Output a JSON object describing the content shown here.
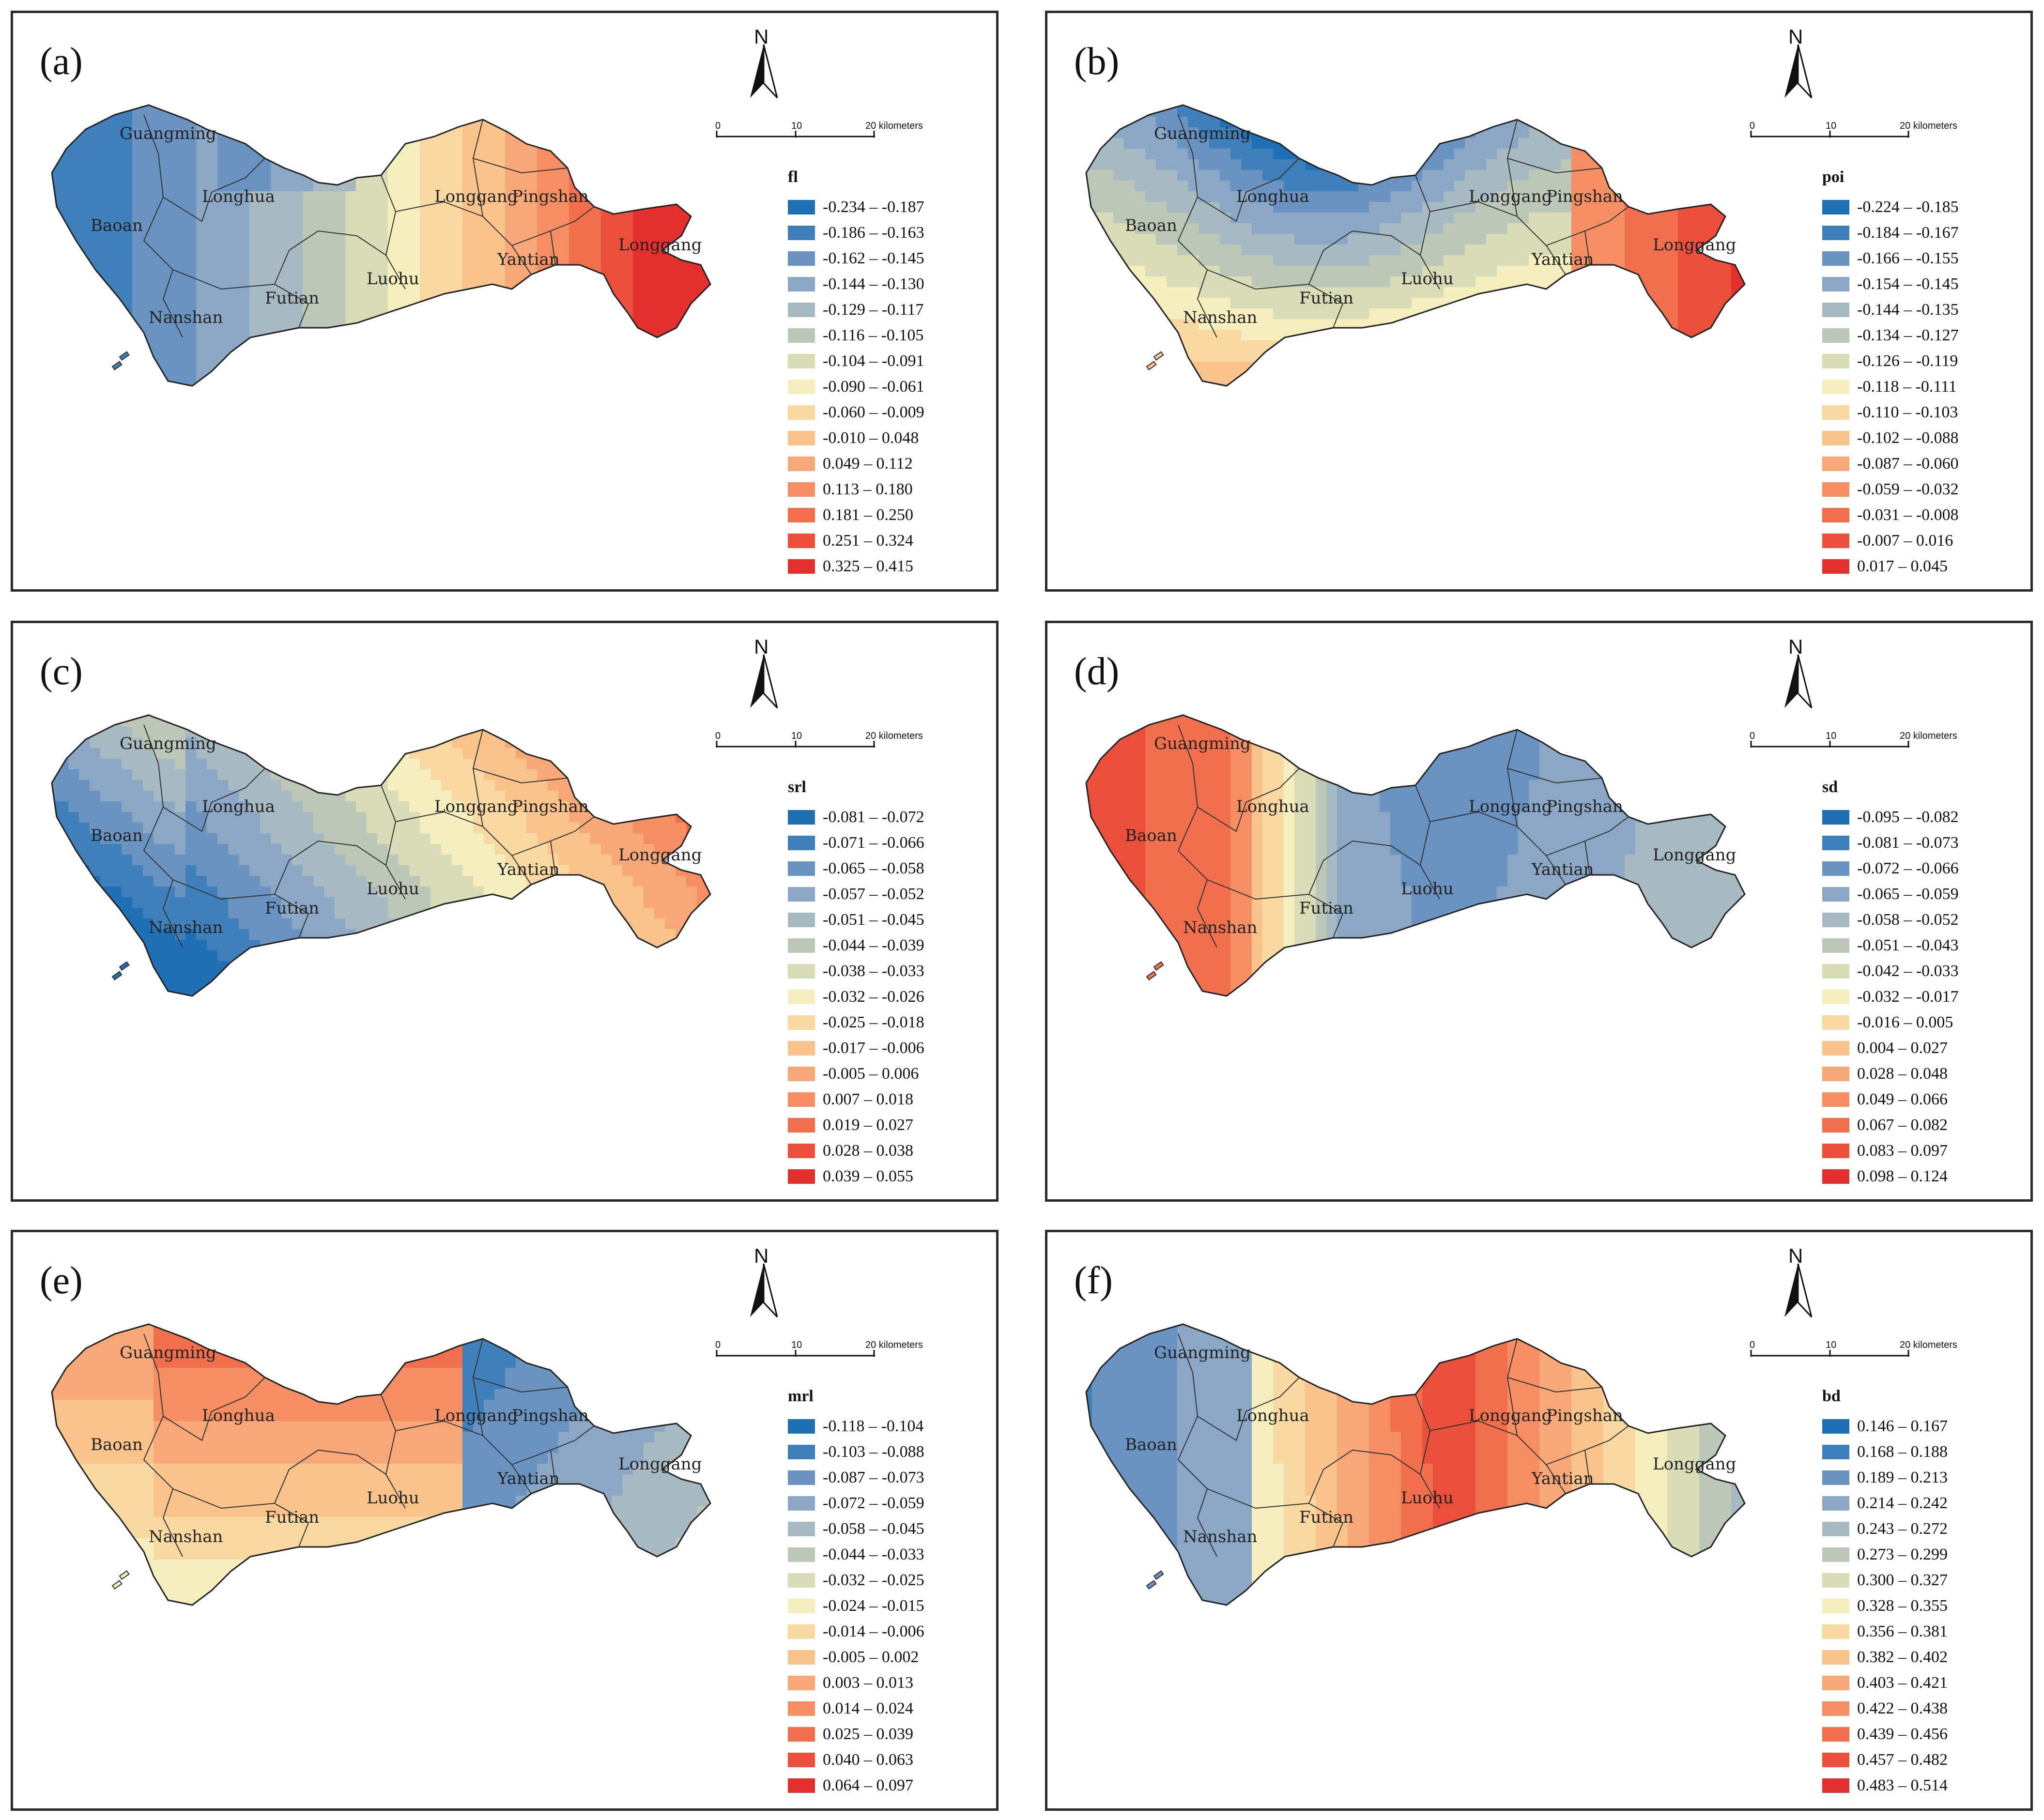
{
  "figure": {
    "scale": {
      "ticks": [
        "0",
        "10",
        "20 kilometers"
      ]
    },
    "north_label": "N",
    "panels": [
      {
        "id": "a",
        "label": "(a)",
        "variable": "fl",
        "legend": [
          "-0.234 – -0.187",
          "-0.186 – -0.163",
          "-0.162 – -0.145",
          "-0.144 – -0.130",
          "-0.129 – -0.117",
          "-0.116 – -0.105",
          "-0.104 – -0.091",
          "-0.090 – -0.061",
          "-0.060 – -0.009",
          "-0.010 – 0.048",
          "0.049 – 0.112",
          "0.113 – 0.180",
          "0.181 – 0.250",
          "0.251 – 0.324",
          "0.325 – 0.415"
        ],
        "districts": [
          "Guangming",
          "Longhua",
          "Baoan",
          "Nanshan",
          "Futian",
          "Luohu",
          "Longgang",
          "Pingshan",
          "Yantian",
          "Longgang"
        ],
        "pattern": "west-blue-east-red"
      },
      {
        "id": "b",
        "label": "(b)",
        "variable": "poi",
        "legend": [
          "-0.224 – -0.185",
          "-0.184 – -0.167",
          "-0.166 – -0.155",
          "-0.154 – -0.145",
          "-0.144 – -0.135",
          "-0.134 – -0.127",
          "-0.126 – -0.119",
          "-0.118 – -0.111",
          "-0.110 – -0.103",
          "-0.102 – -0.088",
          "-0.087 – -0.060",
          "-0.059 – -0.032",
          "-0.031 – -0.008",
          "-0.007 – 0.016",
          "0.017 – 0.045"
        ],
        "districts": [
          "Guangming",
          "Longhua",
          "Baoan",
          "Nanshan",
          "Futian",
          "Luohu",
          "Longgang",
          "Pingshan",
          "Yantian",
          "Longgang"
        ],
        "pattern": "north-blue-east-red"
      },
      {
        "id": "c",
        "label": "(c)",
        "variable": "srl",
        "legend": [
          "-0.081 – -0.072",
          "-0.071 – -0.066",
          "-0.065 – -0.058",
          "-0.057 – -0.052",
          "-0.051 – -0.045",
          "-0.044 – -0.039",
          "-0.038 – -0.033",
          "-0.032 – -0.026",
          "-0.025 – -0.018",
          "-0.017 – -0.006",
          "-0.005 – 0.006",
          "0.007 – 0.018",
          "0.019 – 0.027",
          "0.028 – 0.038",
          "0.039 – 0.055"
        ],
        "districts": [
          "Guangming",
          "Longhua",
          "Baoan",
          "Nanshan",
          "Futian",
          "Luohu",
          "Longgang",
          "Pingshan",
          "Yantian",
          "Longgang"
        ],
        "pattern": "southwest-blue-northeast-red"
      },
      {
        "id": "d",
        "label": "(d)",
        "variable": "sd",
        "legend": [
          "-0.095 – -0.082",
          "-0.081 – -0.073",
          "-0.072 – -0.066",
          "-0.065 – -0.059",
          "-0.058 – -0.052",
          "-0.051 – -0.043",
          "-0.042 – -0.033",
          "-0.032 – -0.017",
          "-0.016 – 0.005",
          "0.004 – 0.027",
          "0.028 – 0.048",
          "0.049 – 0.066",
          "0.067 – 0.082",
          "0.083 – 0.097",
          "0.098 – 0.124"
        ],
        "districts": [
          "Guangming",
          "Longhua",
          "Baoan",
          "Nanshan",
          "Futian",
          "Luohu",
          "Longgang",
          "Pingshan",
          "Yantian",
          "Longgang"
        ],
        "pattern": "west-red-east-blue"
      },
      {
        "id": "e",
        "label": "(e)",
        "variable": "mrl",
        "legend": [
          "-0.118 – -0.104",
          "-0.103 – -0.088",
          "-0.087 – -0.073",
          "-0.072 – -0.059",
          "-0.058 – -0.045",
          "-0.044 – -0.033",
          "-0.032 – -0.025",
          "-0.024 – -0.015",
          "-0.014 – -0.006",
          "-0.005 – 0.002",
          "0.003 – 0.013",
          "0.014 – 0.024",
          "0.025 – 0.039",
          "0.040 – 0.063",
          "0.064 – 0.097"
        ],
        "districts": [
          "Guangming",
          "Longhua",
          "Baoan",
          "Nanshan",
          "Futian",
          "Luohu",
          "Longgang",
          "Pingshan",
          "Yantian",
          "Longgang"
        ],
        "pattern": "north-red-east-blue"
      },
      {
        "id": "f",
        "label": "(f)",
        "variable": "bd",
        "legend": [
          "0.146 – 0.167",
          "0.168 – 0.188",
          "0.189 – 0.213",
          "0.214 – 0.242",
          "0.243 – 0.272",
          "0.273 – 0.299",
          "0.300 – 0.327",
          "0.328 – 0.355",
          "0.356 – 0.381",
          "0.382 – 0.402",
          "0.403 – 0.421",
          "0.422 – 0.438",
          "0.439 – 0.456",
          "0.457 – 0.482",
          "0.483 – 0.514"
        ],
        "districts": [
          "Guangming",
          "Longhua",
          "Baoan",
          "Nanshan",
          "Futian",
          "Luohu",
          "Longgang",
          "Pingshan",
          "Yantian",
          "Longgang"
        ],
        "pattern": "west-blue-center-red"
      }
    ],
    "palette": [
      "#1f6fb4",
      "#3f7fba",
      "#6a93c1",
      "#8aa8c5",
      "#a7b9c1",
      "#bcc7b8",
      "#d8ddb8",
      "#f4efbd",
      "#f9d9a1",
      "#f9c38b",
      "#f8a878",
      "#f68e64",
      "#f26f4e",
      "#ea4f3c",
      "#e3302e"
    ]
  }
}
